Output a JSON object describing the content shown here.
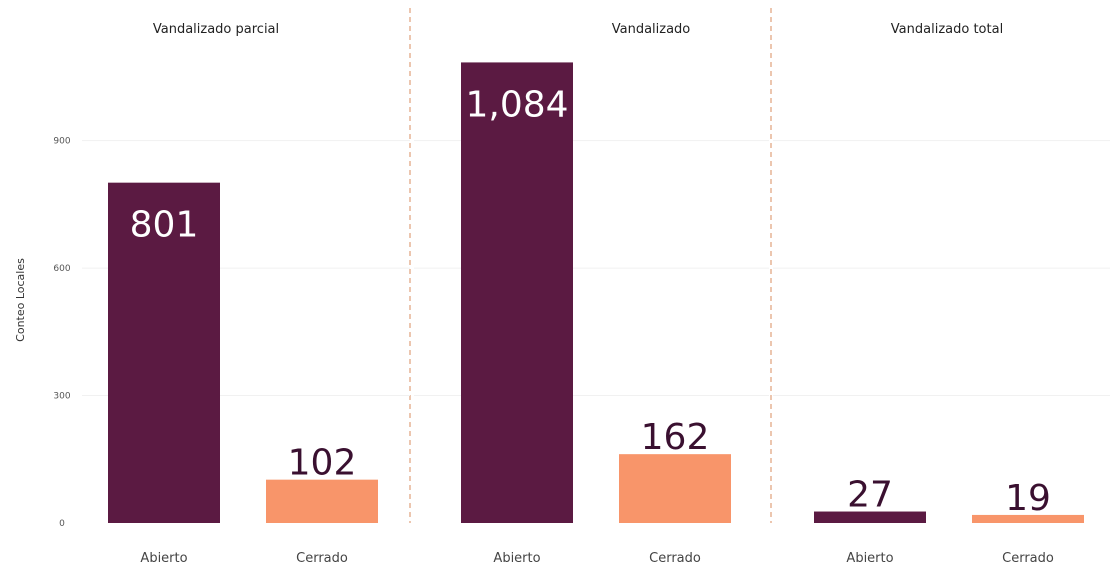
{
  "chart_data": {
    "type": "bar",
    "ylabel": "Conteo Locales",
    "ylim": [
      0,
      1125
    ],
    "yticks": [
      0,
      300,
      600,
      900
    ],
    "colors": {
      "Abierto": "#5b1a42",
      "Cerrado": "#f8956a",
      "divider": "#e0a07a"
    },
    "label_inside_threshold": 500,
    "panels": [
      {
        "title": "Vandalizado parcial",
        "categories": [
          "Abierto",
          "Cerrado"
        ],
        "values": [
          801,
          102
        ],
        "value_labels": [
          "801",
          "102"
        ]
      },
      {
        "title": "Vandalizado",
        "categories": [
          "Abierto",
          "Cerrado"
        ],
        "values": [
          1084,
          162
        ],
        "value_labels": [
          "1,084",
          "162"
        ]
      },
      {
        "title": "Vandalizado total",
        "categories": [
          "Abierto",
          "Cerrado"
        ],
        "values": [
          27,
          19
        ],
        "value_labels": [
          "27",
          "19"
        ]
      }
    ]
  }
}
